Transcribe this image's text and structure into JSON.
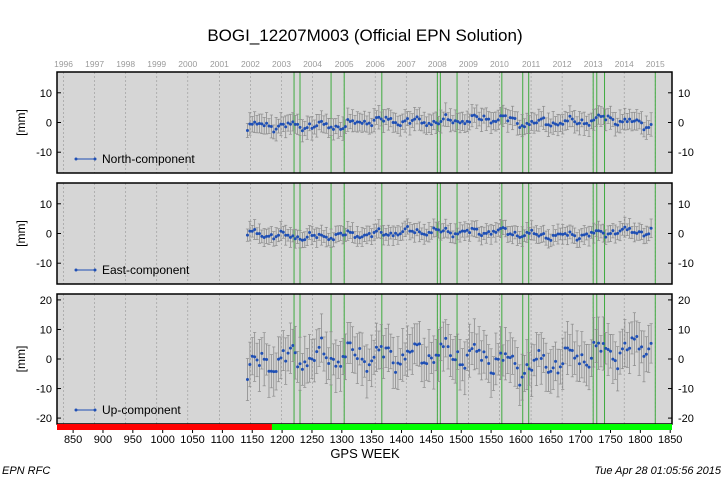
{
  "chart_data": {
    "type": "scatter",
    "title": "BOGI_12207M003 (Official EPN Solution)",
    "xlabel": "GPS WEEK",
    "x_range": [
      823,
      1853
    ],
    "x_ticks": [
      850,
      900,
      950,
      1000,
      1050,
      1100,
      1150,
      1200,
      1250,
      1300,
      1350,
      1400,
      1450,
      1500,
      1550,
      1600,
      1650,
      1700,
      1750,
      1800,
      1850
    ],
    "top_axis": {
      "year_labels": [
        "1996",
        "1997",
        "1998",
        "1999",
        "2000",
        "2001",
        "2002",
        "2003",
        "2004",
        "2005",
        "2006",
        "2007",
        "2008",
        "2009",
        "2010",
        "2011",
        "2012",
        "2013",
        "2014",
        "2015"
      ],
      "year_start_weeks": [
        834,
        886,
        938,
        990,
        1042,
        1095,
        1147,
        1199,
        1251,
        1304,
        1356,
        1408,
        1460,
        1512,
        1564,
        1617,
        1669,
        1721,
        1773,
        1825
      ]
    },
    "equipment_change_weeks": [
      1220,
      1230,
      1282,
      1304,
      1367,
      1460,
      1465,
      1493,
      1568,
      1603,
      1613,
      1721,
      1727,
      1740,
      1825
    ],
    "coverage_bar": [
      {
        "from": 823,
        "to": 1183,
        "color": "#ff0000"
      },
      {
        "from": 1183,
        "to": 1853,
        "color": "#00ff00"
      }
    ],
    "series_color": "#1f4fb4",
    "errorbar_color": "#8c8c8c",
    "panels": [
      {
        "name": "North-component",
        "ylabel": "[mm]",
        "ylim": [
          -17,
          17
        ],
        "yticks": [
          -10,
          0,
          10
        ],
        "legend": "bottom-left",
        "x_start": 1142,
        "x_end": 1820,
        "step": 4,
        "error": 3.3,
        "trend": [
          [
            1142,
            -1
          ],
          [
            1300,
            -1.2
          ],
          [
            1350,
            0.8
          ],
          [
            1420,
            0.3
          ],
          [
            1460,
            0.2
          ],
          [
            1520,
            1
          ],
          [
            1570,
            1.5
          ],
          [
            1600,
            -0.3
          ],
          [
            1700,
            0.2
          ],
          [
            1740,
            1.5
          ],
          [
            1820,
            -1
          ]
        ],
        "ripple": [
          {
            "amp": 0.9,
            "period": 52.18,
            "phase": 0.0
          },
          {
            "amp": 0.6,
            "period": 23.0,
            "phase": 1.0
          },
          {
            "amp": 0.45,
            "period": 9.1,
            "phase": 2.0
          },
          {
            "amp": 0.35,
            "period": 5.3,
            "phase": 0.5
          }
        ]
      },
      {
        "name": "East-component",
        "ylabel": "[mm]",
        "ylim": [
          -17,
          17
        ],
        "yticks": [
          -10,
          0,
          10
        ],
        "legend": "bottom-left",
        "x_start": 1142,
        "x_end": 1820,
        "step": 4,
        "error": 2.8,
        "trend": [
          [
            1142,
            0
          ],
          [
            1200,
            -0.8
          ],
          [
            1250,
            -1.3
          ],
          [
            1300,
            -0.5
          ],
          [
            1350,
            -0.3
          ],
          [
            1420,
            0.7
          ],
          [
            1460,
            0.6
          ],
          [
            1520,
            0.5
          ],
          [
            1570,
            0.7
          ],
          [
            1600,
            -0.3
          ],
          [
            1660,
            -0.8
          ],
          [
            1720,
            -0.3
          ],
          [
            1760,
            0.8
          ],
          [
            1820,
            0.5
          ]
        ],
        "ripple": [
          {
            "amp": 0.8,
            "period": 52.18,
            "phase": 1.3
          },
          {
            "amp": 0.55,
            "period": 23.0,
            "phase": 0.4
          },
          {
            "amp": 0.4,
            "period": 9.1,
            "phase": 2.6
          },
          {
            "amp": 0.3,
            "period": 5.3,
            "phase": 1.1
          }
        ]
      },
      {
        "name": "Up-component",
        "ylabel": "[mm]",
        "ylim": [
          -22,
          22
        ],
        "yticks": [
          -20,
          -10,
          0,
          10,
          20
        ],
        "legend": "bottom-left",
        "x_start": 1142,
        "x_end": 1820,
        "step": 4,
        "error": 7.5,
        "trend": [
          [
            1142,
            -3
          ],
          [
            1200,
            0
          ],
          [
            1300,
            1
          ],
          [
            1400,
            1
          ],
          [
            1460,
            2
          ],
          [
            1520,
            1
          ],
          [
            1560,
            0
          ],
          [
            1600,
            -3
          ],
          [
            1660,
            -1
          ],
          [
            1720,
            2
          ],
          [
            1780,
            3
          ],
          [
            1820,
            6
          ]
        ],
        "ripple": [
          {
            "amp": 3.0,
            "period": 52.18,
            "phase": 0.2
          },
          {
            "amp": 1.6,
            "period": 23.0,
            "phase": 1.7
          },
          {
            "amp": 1.2,
            "period": 9.1,
            "phase": 0.9
          },
          {
            "amp": 0.9,
            "period": 5.3,
            "phase": 2.2
          }
        ]
      }
    ]
  },
  "footer": {
    "left": "EPN RFC",
    "right": "Tue Apr 28 01:05:56 2015"
  }
}
